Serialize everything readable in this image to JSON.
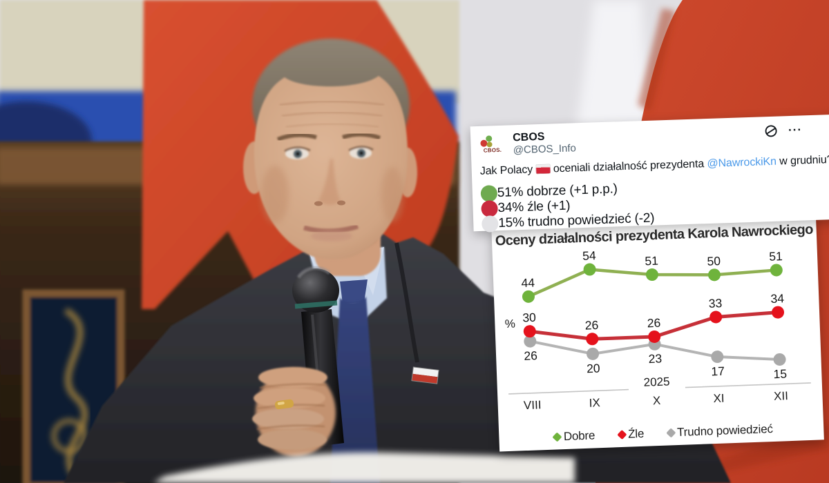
{
  "tweet": {
    "author": "CBOS",
    "handle": "@CBOS_Info",
    "avatar": {
      "label": "CBOS.",
      "dot_colors": [
        "#cf3a34",
        "#6fae4e",
        "#a8a239"
      ]
    },
    "icons": {
      "grok": "slashed-circle-icon",
      "more": "···"
    },
    "body": {
      "before_flag": "Jak Polacy",
      "flag_icon": "poland-flag",
      "middle": "oceniali działalność prezydenta",
      "mention": "@NawrockiKn",
      "after": "w grudniu?"
    },
    "mention_color": "#4a99e9",
    "stats": [
      {
        "label": "51% dobrze (+1 p.p.)",
        "dot_color": "#6faa50"
      },
      {
        "label": "34% źle (+1)",
        "dot_color": "#c9293e"
      },
      {
        "label": "15% trudno powiedzieć (-2)",
        "dot_color": "#e3e3e6"
      }
    ]
  },
  "chart_data": {
    "type": "line",
    "title": "Oceny działalności prezydenta Karola Nawrockiego",
    "ylabel": "%",
    "x": [
      "VIII",
      "IX",
      "X",
      "XI",
      "XII"
    ],
    "x_period_label": "2025",
    "grid": false,
    "point_labels_shown": true,
    "legend_position": "bottom",
    "series": [
      {
        "name": "Dobre",
        "values": [
          44,
          54,
          51,
          50,
          51
        ],
        "line_color": "#8fb052",
        "marker_color": "#6fb33c",
        "label_side": "above"
      },
      {
        "name": "Źle",
        "values": [
          30,
          26,
          26,
          33,
          34
        ],
        "line_color": "#c63038",
        "marker_color": "#e5121c",
        "label_side": "above"
      },
      {
        "name": "Trudno powiedzieć",
        "values": [
          26,
          20,
          23,
          17,
          15
        ],
        "line_color": "#b4b4b4",
        "marker_color": "#a9a9a9",
        "label_side": "below"
      }
    ]
  }
}
